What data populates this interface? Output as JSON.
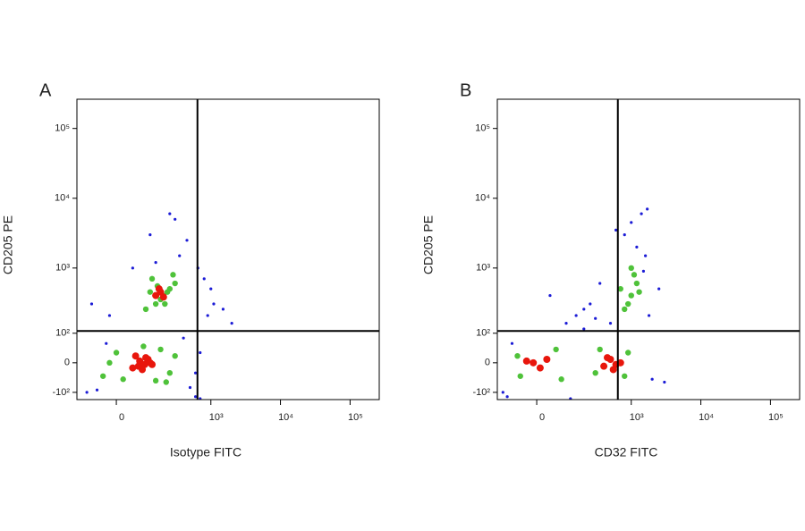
{
  "chart_data": [
    {
      "type": "scatter",
      "panel_label": "A",
      "xlabel": "Isotype FITC",
      "ylabel": "CD205 PE",
      "scale": "biexponential",
      "xlim": [
        -150,
        262144
      ],
      "ylim": [
        -135,
        262144
      ],
      "xticks": [
        0,
        {
          "value": 1000,
          "label": "10³"
        },
        {
          "value": 10000,
          "label": "10⁴"
        },
        {
          "value": 100000,
          "label": "10⁵"
        }
      ],
      "yticks": [
        {
          "value": -100,
          "label": "-10²"
        },
        0,
        {
          "value": 100,
          "label": "10²"
        },
        {
          "value": 1000,
          "label": "10³"
        },
        {
          "value": 10000,
          "label": "10⁴"
        },
        {
          "value": 100000,
          "label": "10⁵"
        }
      ],
      "quadrant_x": 640,
      "quadrant_y": 110,
      "series": [
        {
          "color": "#1c1cd6",
          "marker_size": 1.6,
          "x": [
            -100,
            -60,
            -30,
            400,
            500,
            600,
            700,
            900,
            1100,
            1500,
            2000,
            -80,
            350,
            450,
            650,
            800,
            -20,
            50,
            120,
            300,
            250,
            600,
            700,
            1000,
            150
          ],
          "values": [
            -100,
            -90,
            60,
            80,
            -80,
            -30,
            30,
            200,
            300,
            250,
            150,
            300,
            1500,
            2500,
            1000,
            700,
            200,
            1000,
            3000,
            5000,
            6000,
            -120,
            -130,
            500,
            1200
          ]
        },
        {
          "color": "#4fc23a",
          "marker_size": 3.2,
          "x": [
            -40,
            0,
            20,
            180,
            250,
            300,
            -20,
            220,
            150,
            90,
            100,
            150,
            200,
            250,
            300,
            130,
            180,
            230,
            280,
            160,
            210,
            120
          ],
          "values": [
            -40,
            30,
            -50,
            40,
            -30,
            20,
            0,
            -60,
            -55,
            50,
            250,
            300,
            400,
            500,
            600,
            700,
            350,
            450,
            800,
            550,
            300,
            450
          ]
        },
        {
          "color": "#e8160c",
          "marker_size": 4,
          "x": [
            50,
            75,
            95,
            110,
            60,
            85,
            120,
            70,
            100,
            130,
            150,
            180,
            200,
            170
          ],
          "values": [
            -15,
            5,
            -5,
            10,
            20,
            -20,
            0,
            -10,
            15,
            -5,
            400,
            450,
            380,
            500
          ]
        }
      ]
    },
    {
      "type": "scatter",
      "panel_label": "B",
      "xlabel": "CD32 FITC",
      "ylabel": "CD205 PE",
      "scale": "biexponential",
      "xlim": [
        -150,
        262144
      ],
      "ylim": [
        -135,
        262144
      ],
      "xticks": [
        0,
        {
          "value": 1000,
          "label": "10³"
        },
        {
          "value": 10000,
          "label": "10⁴"
        },
        {
          "value": 100000,
          "label": "10⁵"
        }
      ],
      "yticks": [
        {
          "value": -100,
          "label": "-10²"
        },
        0,
        {
          "value": 100,
          "label": "10²"
        },
        {
          "value": 1000,
          "label": "10³"
        },
        {
          "value": 10000,
          "label": "10⁴"
        },
        {
          "value": 100000,
          "label": "10⁵"
        }
      ],
      "quadrant_x": 640,
      "quadrant_y": 110,
      "series": [
        {
          "color": "#1c1cd6",
          "marker_size": 1.6,
          "x": [
            -120,
            -80,
            100,
            150,
            200,
            250,
            40,
            300,
            350,
            200,
            500,
            1500,
            1800,
            2000,
            3000,
            1200,
            1000,
            1400,
            600,
            -100,
            120,
            2500,
            1600,
            800,
            1700
          ],
          "values": [
            -100,
            60,
            150,
            200,
            250,
            300,
            400,
            180,
            600,
            120,
            150,
            900,
            200,
            -50,
            -60,
            2000,
            4500,
            6000,
            3500,
            -120,
            -130,
            500,
            1500,
            3000,
            7000
          ]
        },
        {
          "color": "#4fc23a",
          "marker_size": 3.2,
          "x": [
            -50,
            60,
            80,
            -60,
            300,
            800,
            900,
            350,
            700,
            1000,
            1200,
            900,
            1100,
            800,
            1300,
            1000
          ],
          "values": [
            -40,
            40,
            -50,
            20,
            -30,
            -40,
            30,
            40,
            500,
            400,
            600,
            300,
            800,
            250,
            450,
            1000
          ]
        },
        {
          "color": "#e8160c",
          "marker_size": 4,
          "x": [
            -10,
            10,
            30,
            -30,
            400,
            500,
            600,
            700,
            450,
            550
          ],
          "values": [
            0,
            -15,
            10,
            5,
            -10,
            10,
            -5,
            0,
            15,
            -20
          ]
        }
      ]
    }
  ]
}
